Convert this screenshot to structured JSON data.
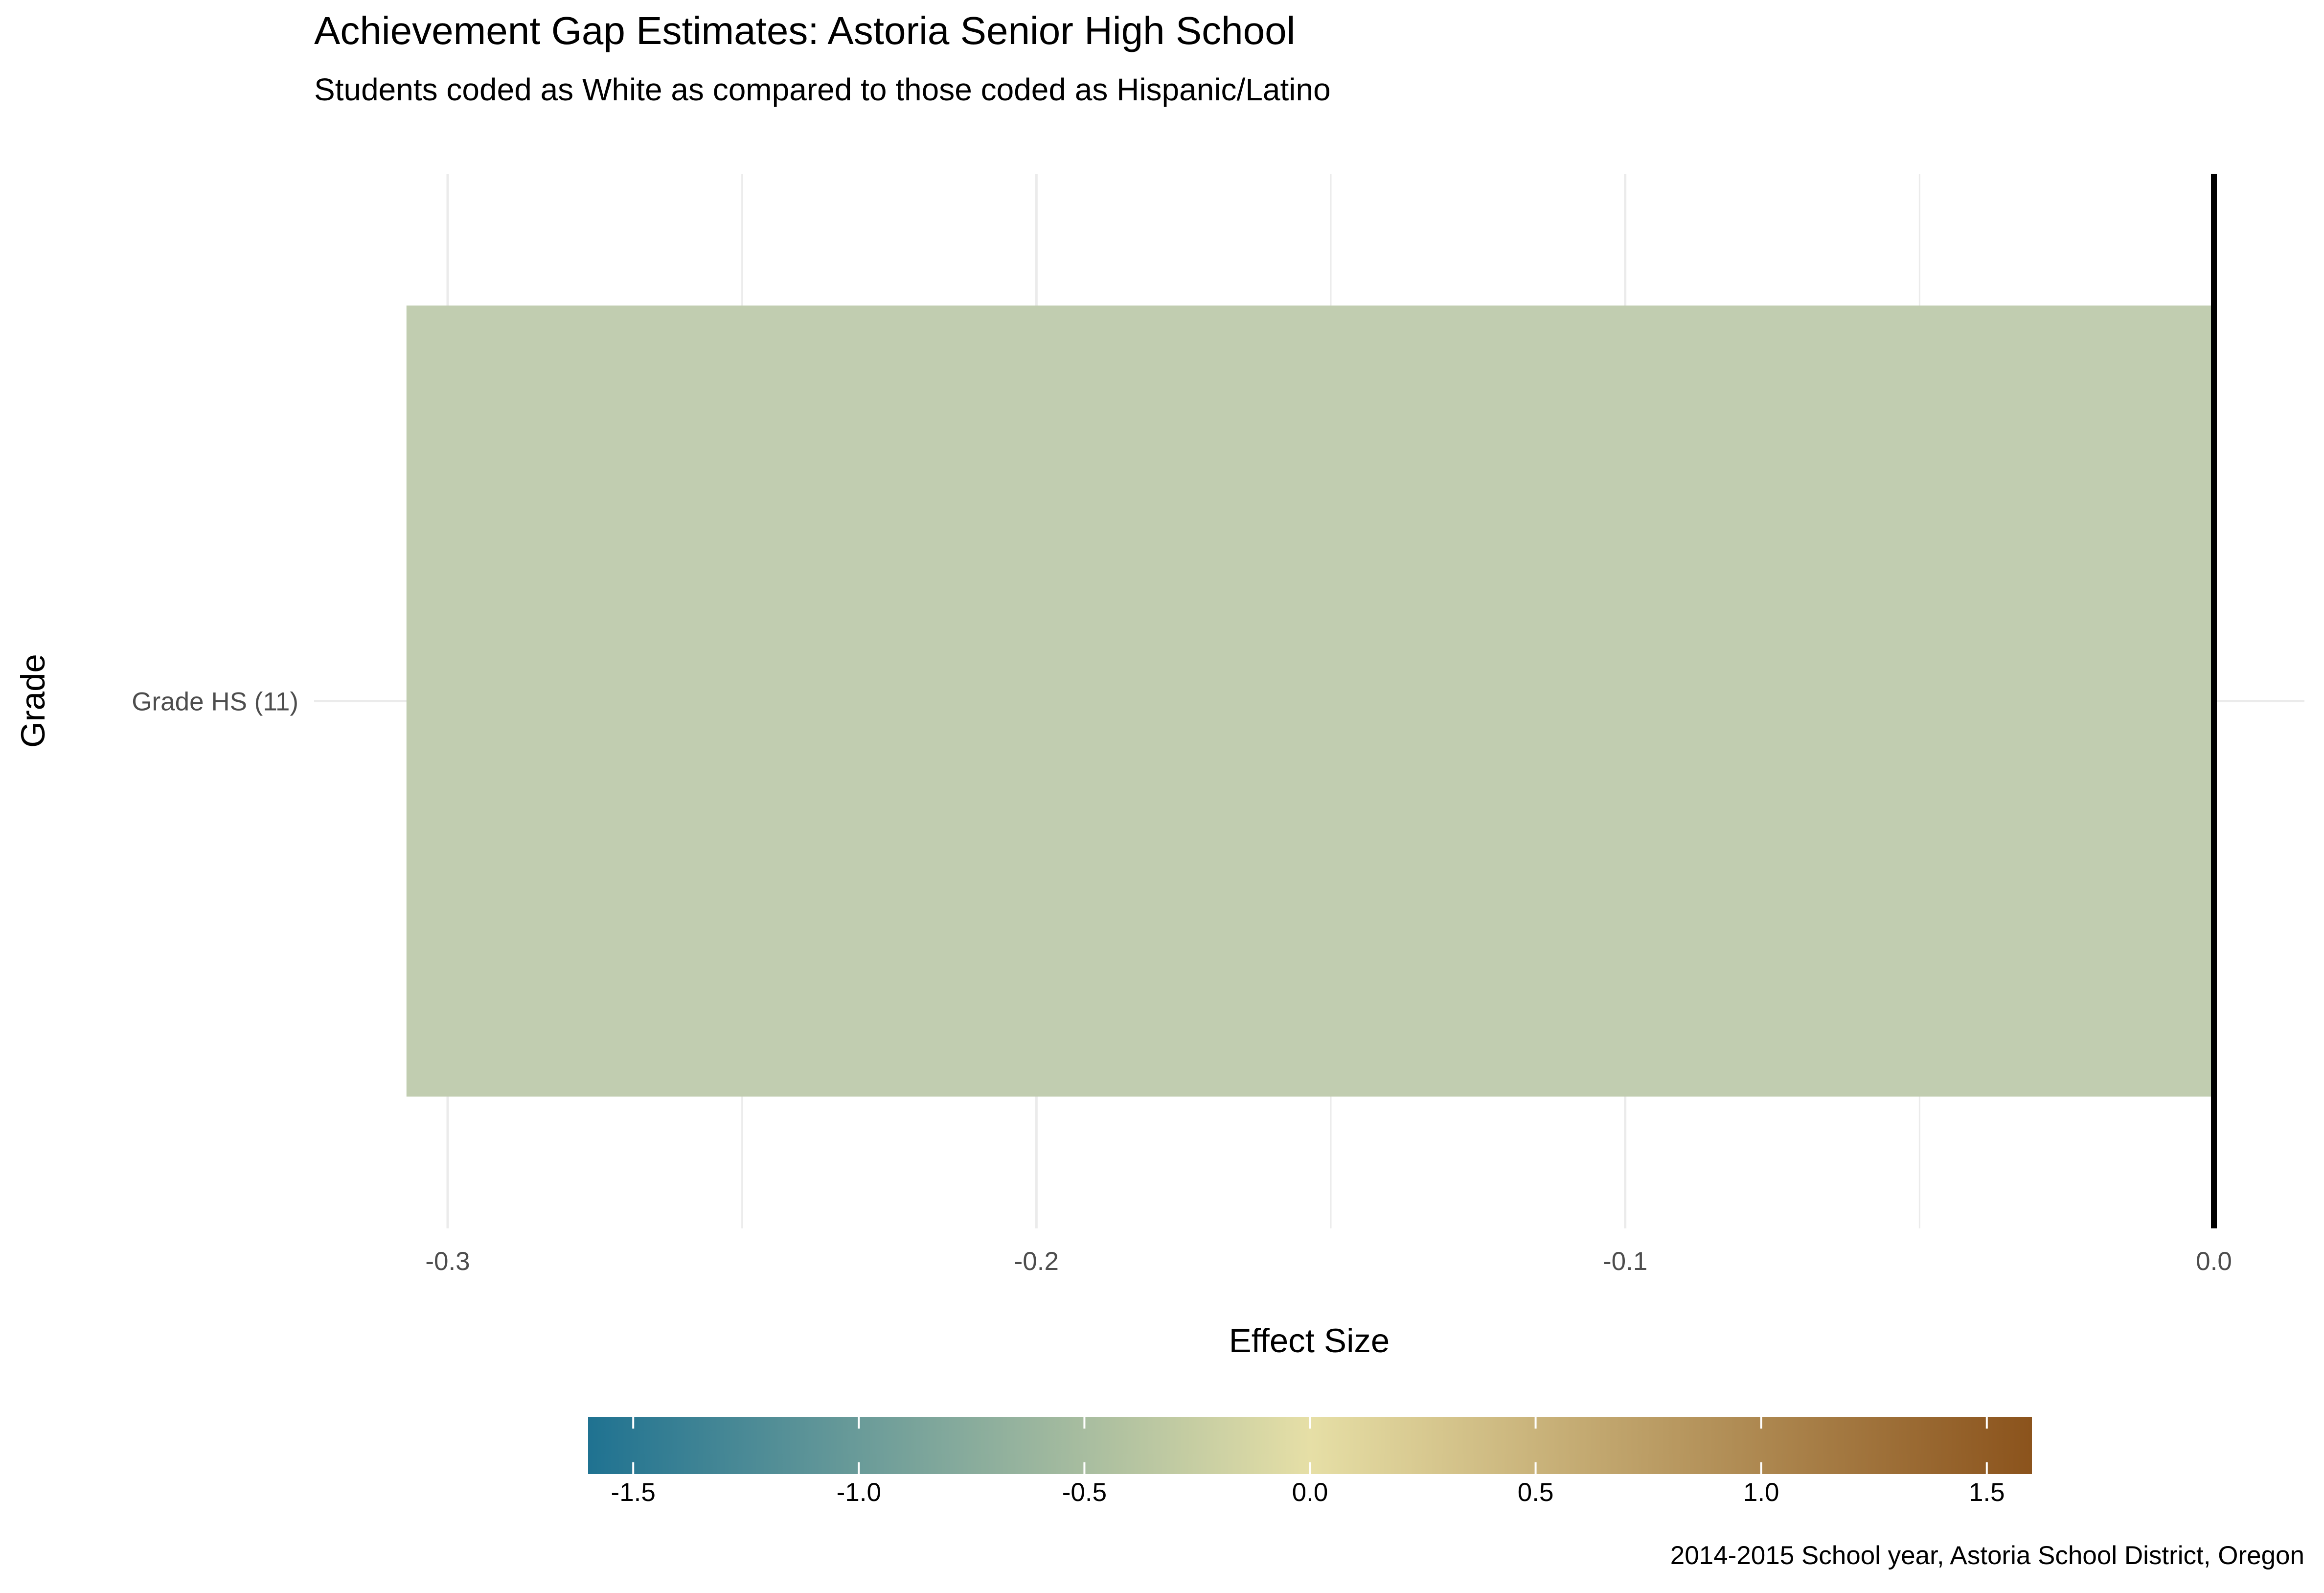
{
  "chart_data": {
    "type": "bar",
    "orientation": "horizontal",
    "title": "Achievement Gap Estimates: Astoria Senior High School",
    "subtitle": "Students coded as White as compared to those coded as Hispanic/Latino",
    "xlabel": "Effect Size",
    "ylabel": "Grade",
    "caption": "2014-2015 School year, Astoria School District, Oregon",
    "categories": [
      "Grade HS (11)"
    ],
    "values": [
      -0.307
    ],
    "xlim": [
      -0.307,
      0.0
    ],
    "x_ticks": [
      -0.3,
      -0.2,
      -0.1,
      0.0
    ],
    "x_tick_labels": [
      "-0.3",
      "-0.2",
      "-0.1",
      "0.0"
    ],
    "reference_line": 0.0,
    "grid": true,
    "legend": {
      "type": "colorbar",
      "placement": "bottom",
      "range": [
        -1.6,
        1.6
      ],
      "ticks": [
        -1.5,
        -1.0,
        -0.5,
        0.0,
        0.5,
        1.0,
        1.5
      ],
      "tick_labels": [
        "-1.5",
        "-1.0",
        "-0.5",
        "0.0",
        "0.5",
        "1.0",
        "1.5"
      ],
      "colors": {
        "low": "#1f7291",
        "mid": "#e6dfa6",
        "high": "#8b531c"
      }
    },
    "colors": {
      "bar": "#c1cdb0",
      "zero_line": "#000000",
      "grid": "#ebebeb",
      "text": "#000000",
      "tick_text": "#4d4d4d"
    }
  }
}
